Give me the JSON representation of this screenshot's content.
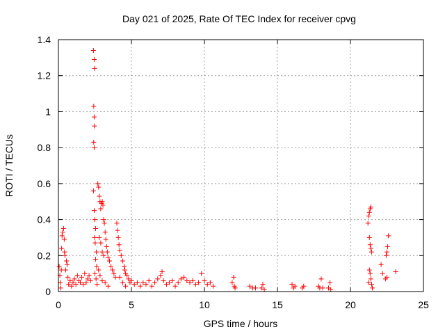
{
  "chart_data": {
    "type": "scatter",
    "title": "Day 021 of 2025, Rate Of TEC Index for receiver cpvg",
    "xlabel": "GPS time / hours",
    "ylabel": "ROTI / TECUs",
    "xlim": [
      0,
      25
    ],
    "ylim": [
      0,
      1.4
    ],
    "xticks": [
      0,
      5,
      10,
      15,
      20,
      25
    ],
    "yticks": [
      0,
      0.2,
      0.4,
      0.6,
      0.8,
      1,
      1.2,
      1.4
    ],
    "xtick_labels": [
      "0",
      "5",
      "10",
      "15",
      "20",
      "25"
    ],
    "ytick_labels": [
      "0",
      "0.2",
      "0.4",
      "0.6",
      "0.8",
      "1",
      "1.2",
      "1.4"
    ],
    "grid": true,
    "marker": "+",
    "color": "#ff0000",
    "series": [
      {
        "points": [
          [
            0.05,
            0.14
          ],
          [
            0.1,
            0.09
          ],
          [
            0.12,
            0.05
          ],
          [
            0.15,
            0.02
          ],
          [
            0.2,
            0.12
          ],
          [
            0.22,
            0.24
          ],
          [
            0.25,
            0.31
          ],
          [
            0.3,
            0.33
          ],
          [
            0.35,
            0.35
          ],
          [
            0.4,
            0.29
          ],
          [
            0.42,
            0.22
          ],
          [
            0.45,
            0.2
          ],
          [
            0.5,
            0.12
          ],
          [
            0.55,
            0.17
          ],
          [
            0.6,
            0.15
          ],
          [
            0.65,
            0.08
          ],
          [
            0.7,
            0.04
          ],
          [
            0.8,
            0.06
          ],
          [
            0.9,
            0.03
          ],
          [
            1.0,
            0.05
          ],
          [
            1.1,
            0.07
          ],
          [
            1.2,
            0.04
          ],
          [
            1.3,
            0.09
          ],
          [
            1.4,
            0.06
          ],
          [
            1.5,
            0.05
          ],
          [
            1.6,
            0.08
          ],
          [
            1.7,
            0.04
          ],
          [
            1.8,
            0.1
          ],
          [
            1.9,
            0.05
          ],
          [
            2.0,
            0.07
          ],
          [
            2.1,
            0.09
          ],
          [
            2.2,
            0.06
          ],
          [
            2.4,
            1.34
          ],
          [
            2.45,
            1.29
          ],
          [
            2.48,
            1.24
          ],
          [
            2.42,
            1.03
          ],
          [
            2.45,
            0.97
          ],
          [
            2.47,
            0.92
          ],
          [
            2.42,
            0.83
          ],
          [
            2.45,
            0.8
          ],
          [
            2.4,
            0.56
          ],
          [
            2.45,
            0.45
          ],
          [
            2.5,
            0.4
          ],
          [
            2.55,
            0.35
          ],
          [
            2.48,
            0.3
          ],
          [
            2.52,
            0.27
          ],
          [
            2.6,
            0.22
          ],
          [
            2.55,
            0.18
          ],
          [
            2.62,
            0.14
          ],
          [
            2.5,
            0.1
          ],
          [
            2.58,
            0.07
          ],
          [
            2.65,
            0.04
          ],
          [
            2.7,
            0.6
          ],
          [
            2.75,
            0.58
          ],
          [
            2.8,
            0.53
          ],
          [
            2.85,
            0.5
          ],
          [
            2.9,
            0.46
          ],
          [
            2.95,
            0.49
          ],
          [
            3.0,
            0.5
          ],
          [
            3.05,
            0.48
          ],
          [
            3.1,
            0.4
          ],
          [
            3.15,
            0.38
          ],
          [
            3.2,
            0.33
          ],
          [
            3.25,
            0.29
          ],
          [
            3.3,
            0.25
          ],
          [
            3.35,
            0.22
          ],
          [
            3.4,
            0.19
          ],
          [
            3.5,
            0.17
          ],
          [
            3.6,
            0.14
          ],
          [
            3.7,
            0.12
          ],
          [
            3.8,
            0.1
          ],
          [
            3.9,
            0.08
          ],
          [
            2.8,
            0.3
          ],
          [
            2.9,
            0.27
          ],
          [
            3.0,
            0.22
          ],
          [
            3.1,
            0.2
          ],
          [
            2.75,
            0.12
          ],
          [
            2.85,
            0.09
          ],
          [
            3.0,
            0.06
          ],
          [
            3.2,
            0.05
          ],
          [
            3.4,
            0.03
          ],
          [
            4.0,
            0.38
          ],
          [
            4.05,
            0.34
          ],
          [
            4.1,
            0.3
          ],
          [
            4.15,
            0.26
          ],
          [
            4.2,
            0.23
          ],
          [
            4.3,
            0.2
          ],
          [
            4.4,
            0.17
          ],
          [
            4.5,
            0.14
          ],
          [
            4.55,
            0.12
          ],
          [
            4.6,
            0.1
          ],
          [
            4.7,
            0.09
          ],
          [
            4.8,
            0.07
          ],
          [
            4.9,
            0.05
          ],
          [
            4.2,
            0.08
          ],
          [
            4.4,
            0.05
          ],
          [
            4.6,
            0.03
          ],
          [
            5.0,
            0.06
          ],
          [
            5.2,
            0.04
          ],
          [
            5.4,
            0.05
          ],
          [
            5.6,
            0.03
          ],
          [
            5.8,
            0.05
          ],
          [
            6.0,
            0.04
          ],
          [
            6.2,
            0.06
          ],
          [
            6.4,
            0.03
          ],
          [
            6.6,
            0.05
          ],
          [
            6.8,
            0.07
          ],
          [
            7.0,
            0.09
          ],
          [
            7.1,
            0.11
          ],
          [
            7.2,
            0.06
          ],
          [
            7.4,
            0.04
          ],
          [
            7.6,
            0.05
          ],
          [
            7.8,
            0.06
          ],
          [
            8.0,
            0.03
          ],
          [
            8.2,
            0.05
          ],
          [
            8.4,
            0.07
          ],
          [
            8.6,
            0.08
          ],
          [
            8.8,
            0.06
          ],
          [
            9.0,
            0.05
          ],
          [
            9.2,
            0.06
          ],
          [
            9.4,
            0.04
          ],
          [
            9.6,
            0.05
          ],
          [
            9.8,
            0.1
          ],
          [
            10.0,
            0.06
          ],
          [
            10.2,
            0.04
          ],
          [
            10.4,
            0.05
          ],
          [
            10.6,
            0.03
          ],
          [
            11.9,
            0.05
          ],
          [
            12.0,
            0.08
          ],
          [
            12.05,
            0.03
          ],
          [
            12.1,
            0.02
          ],
          [
            13.1,
            0.03
          ],
          [
            13.3,
            0.02
          ],
          [
            13.5,
            0.02
          ],
          [
            13.9,
            0.02
          ],
          [
            14.0,
            0.04
          ],
          [
            14.1,
            0.01
          ],
          [
            16.0,
            0.04
          ],
          [
            16.1,
            0.02
          ],
          [
            16.2,
            0.03
          ],
          [
            16.7,
            0.02
          ],
          [
            16.8,
            0.03
          ],
          [
            17.8,
            0.03
          ],
          [
            17.9,
            0.02
          ],
          [
            18.0,
            0.07
          ],
          [
            18.1,
            0.02
          ],
          [
            18.5,
            0.02
          ],
          [
            18.6,
            0.05
          ],
          [
            18.65,
            0.01
          ],
          [
            21.2,
            0.38
          ],
          [
            21.25,
            0.42
          ],
          [
            21.3,
            0.44
          ],
          [
            21.35,
            0.46
          ],
          [
            21.4,
            0.47
          ],
          [
            21.3,
            0.3
          ],
          [
            21.35,
            0.26
          ],
          [
            21.4,
            0.24
          ],
          [
            21.45,
            0.22
          ],
          [
            21.3,
            0.12
          ],
          [
            21.35,
            0.1
          ],
          [
            21.4,
            0.07
          ],
          [
            21.45,
            0.04
          ],
          [
            21.5,
            0.02
          ],
          [
            21.25,
            0.05
          ],
          [
            22.1,
            0.15
          ],
          [
            22.2,
            0.1
          ],
          [
            22.4,
            0.07
          ],
          [
            22.5,
            0.08
          ],
          [
            22.45,
            0.2
          ],
          [
            22.5,
            0.22
          ],
          [
            22.55,
            0.25
          ],
          [
            22.6,
            0.31
          ],
          [
            23.1,
            0.11
          ]
        ]
      }
    ]
  }
}
